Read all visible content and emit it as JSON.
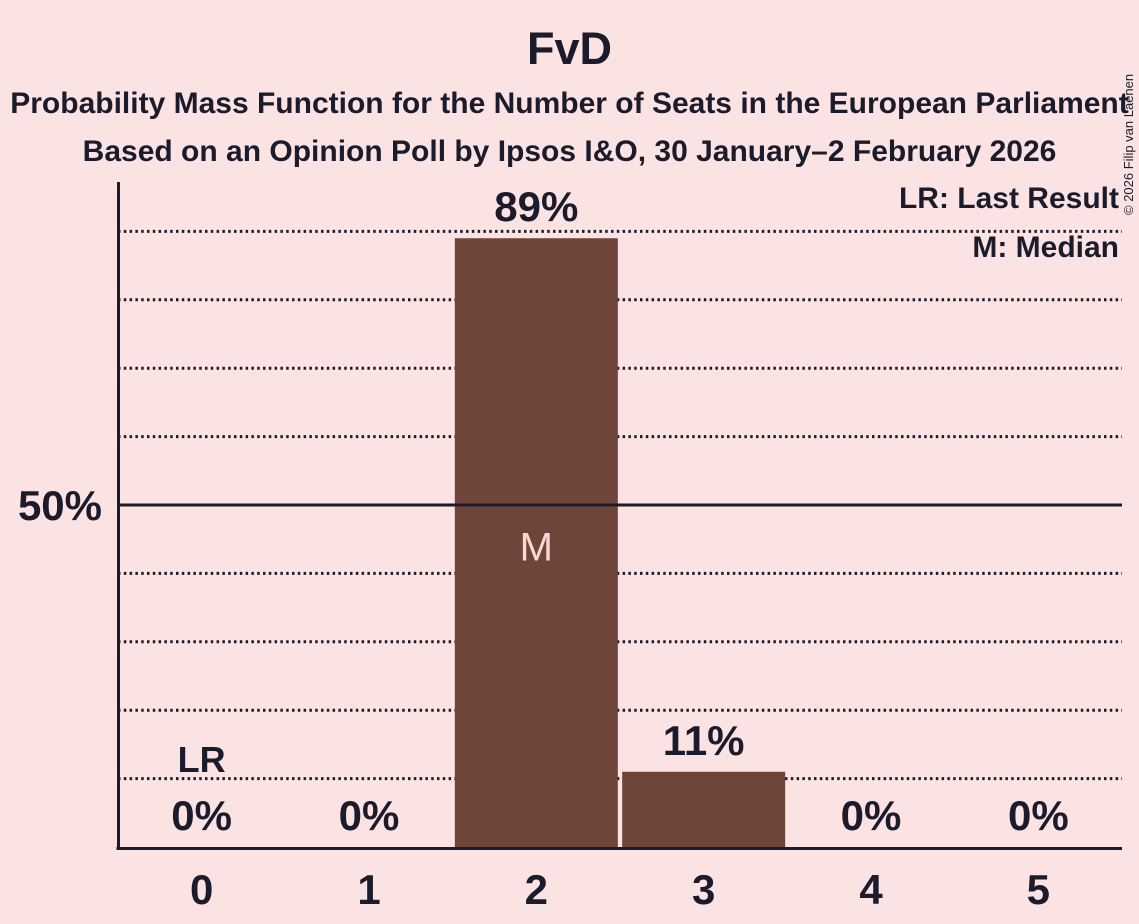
{
  "title": "FvD",
  "subtitle": "Probability Mass Function for the Number of Seats in the European Parliament",
  "poll_info": "Based on an Opinion Poll by Ipsos I&O, 30 January–2 February 2026",
  "copyright": "© 2026 Filip van Laenen",
  "legend": {
    "lr": "LR: Last Result",
    "m": "M: Median"
  },
  "y_axis": {
    "label": "50%"
  },
  "colors": {
    "background": "#FBE3E3",
    "bar": "#6F4539",
    "text": "#1B1B2C",
    "bar_inner_label": "#F7D8D6"
  },
  "chart_data": {
    "type": "bar",
    "title": "FvD",
    "xlabel": "",
    "ylabel": "",
    "categories": [
      "0",
      "1",
      "2",
      "3",
      "4",
      "5"
    ],
    "values": [
      0,
      0,
      89,
      11,
      0,
      0
    ],
    "value_labels": [
      "0%",
      "0%",
      "89%",
      "11%",
      "0%",
      "0%"
    ],
    "ylim": [
      0,
      100
    ],
    "gridlines_pct": [
      10,
      20,
      30,
      40,
      50,
      60,
      70,
      80,
      90
    ],
    "solid_line_pct": 50,
    "y_tick_labels": [
      {
        "pct": 50,
        "label": "50%"
      }
    ],
    "legend_position": "top-right",
    "grid": "dotted",
    "annotations": {
      "median_label": "M",
      "median_category": "2",
      "last_result_label": "LR",
      "last_result_category": "0"
    }
  }
}
